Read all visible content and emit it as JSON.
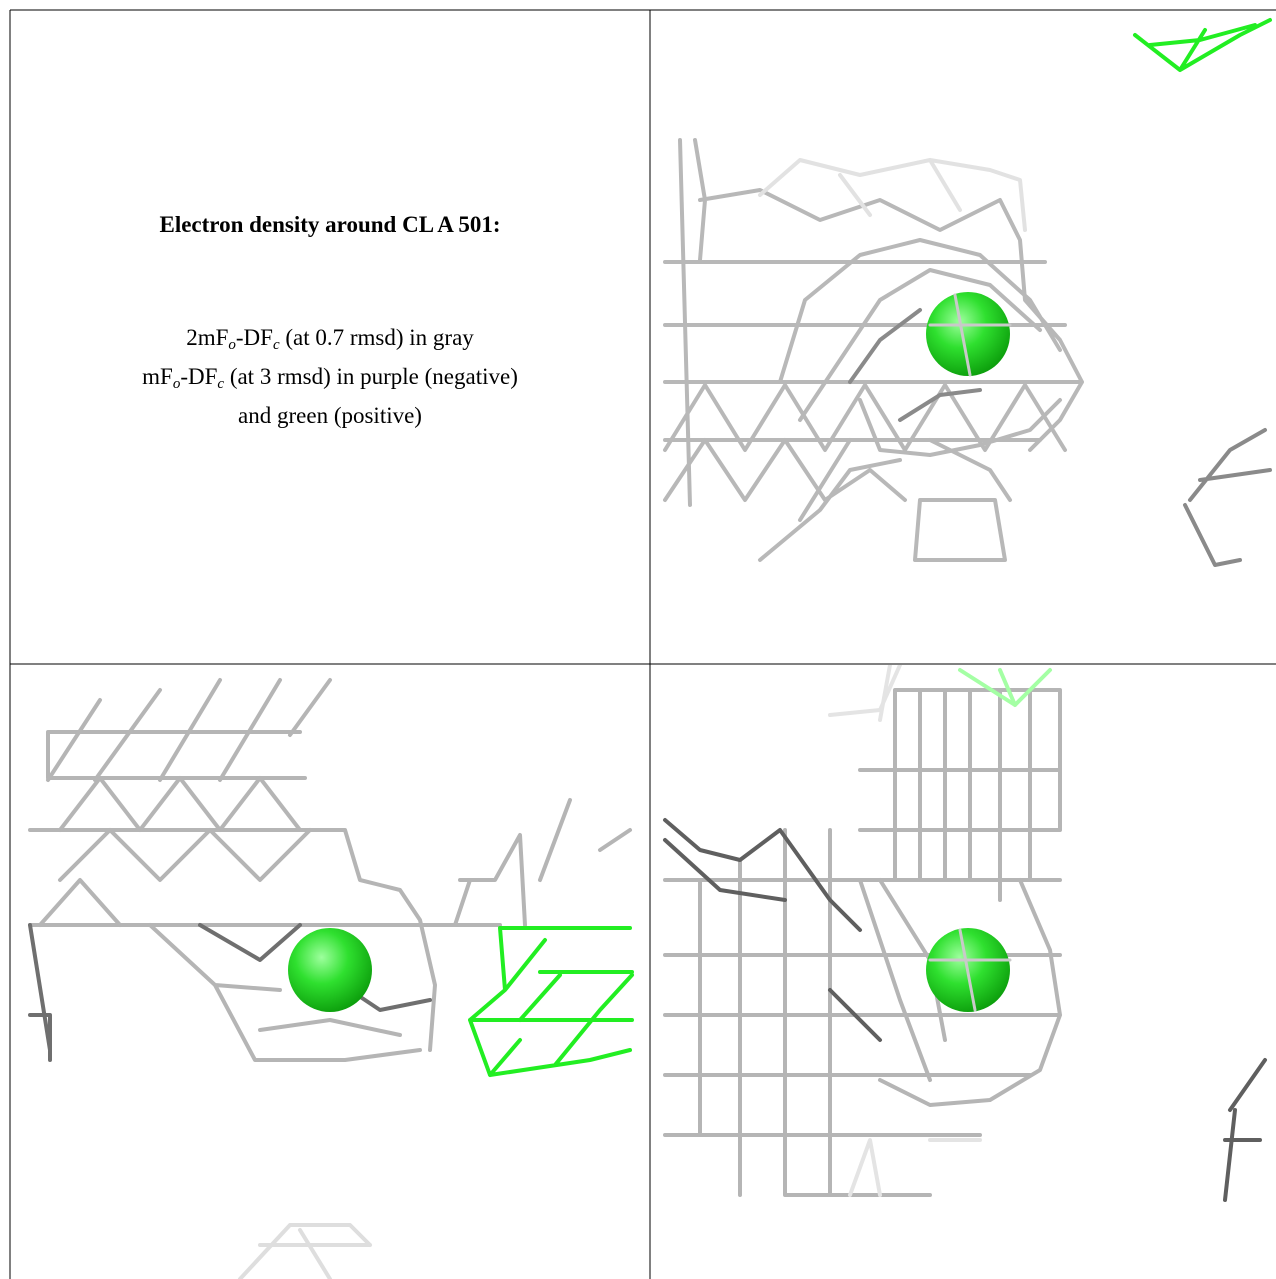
{
  "title": "Electron density around CL A 501:",
  "legend_lines": [
    [
      "2mF",
      "o",
      "-DF",
      "c",
      " (at 0.7 rmsd) in gray"
    ],
    [
      "mF",
      "o",
      "-DF",
      "c",
      " (at 3 rmsd) in purple (negative)"
    ],
    [
      "and green (positive)"
    ]
  ]
}
